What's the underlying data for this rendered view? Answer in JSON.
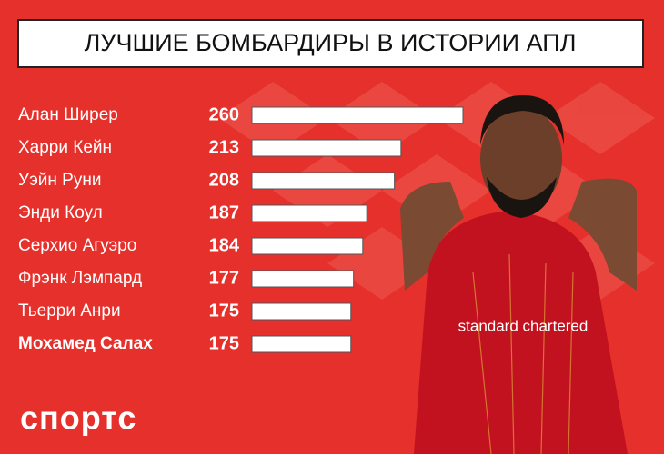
{
  "chart_data": {
    "type": "bar",
    "orientation": "horizontal",
    "title": "ЛУЧШИЕ БОМБАРДИРЫ В ИСТОРИИ АПЛ",
    "categories": [
      "Алан Ширер",
      "Харри Кейн",
      "Уэйн Руни",
      "Энди Коул",
      "Серхио Агуэро",
      "Фрэнк Лэмпард",
      "Тьерри Анри",
      "Мохамед Салах"
    ],
    "values": [
      260,
      213,
      208,
      187,
      184,
      177,
      175,
      175
    ],
    "color": "#ffffff",
    "xlim": [
      100,
      260
    ],
    "highlight": 7
  },
  "logo": "спортс"
}
